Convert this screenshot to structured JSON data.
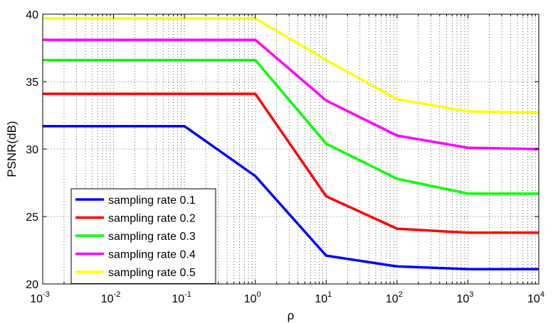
{
  "chart_data": {
    "type": "line",
    "title": "",
    "xlabel": "ρ",
    "ylabel": "PSNR(dB)",
    "xscale": "log",
    "xlim": [
      0.001,
      10000
    ],
    "ylim": [
      20,
      40
    ],
    "grid": true,
    "x": [
      0.001,
      0.1,
      1,
      10,
      100,
      1000,
      10000
    ],
    "x_tick_labels": [
      {
        "base": "10",
        "exp": "-3"
      },
      {
        "base": "10",
        "exp": "-2"
      },
      {
        "base": "10",
        "exp": "-1"
      },
      {
        "base": "10",
        "exp": "0"
      },
      {
        "base": "10",
        "exp": "1"
      },
      {
        "base": "10",
        "exp": "2"
      },
      {
        "base": "10",
        "exp": "3"
      },
      {
        "base": "10",
        "exp": "4"
      }
    ],
    "y_ticks": [
      "20",
      "25",
      "30",
      "35",
      "40"
    ],
    "legend_position": "bottom-left",
    "series": [
      {
        "name": "sampling rate 0.1",
        "color": "#0000ff",
        "values": [
          31.7,
          31.7,
          28.0,
          22.1,
          21.3,
          21.1,
          21.1
        ]
      },
      {
        "name": "sampling rate 0.2",
        "color": "#ff0000",
        "values": [
          34.1,
          34.1,
          34.1,
          26.5,
          24.1,
          23.8,
          23.8
        ]
      },
      {
        "name": "sampling rate 0.3",
        "color": "#00ff00",
        "values": [
          36.6,
          36.6,
          36.6,
          30.4,
          27.8,
          26.7,
          26.7
        ]
      },
      {
        "name": "sampling rate 0.4",
        "color": "#ff00ff",
        "values": [
          38.1,
          38.1,
          38.1,
          33.6,
          31.0,
          30.1,
          30.0
        ]
      },
      {
        "name": "sampling rate 0.5",
        "color": "#ffff00",
        "values": [
          39.7,
          39.7,
          39.7,
          36.6,
          33.7,
          32.8,
          32.7
        ]
      }
    ]
  }
}
